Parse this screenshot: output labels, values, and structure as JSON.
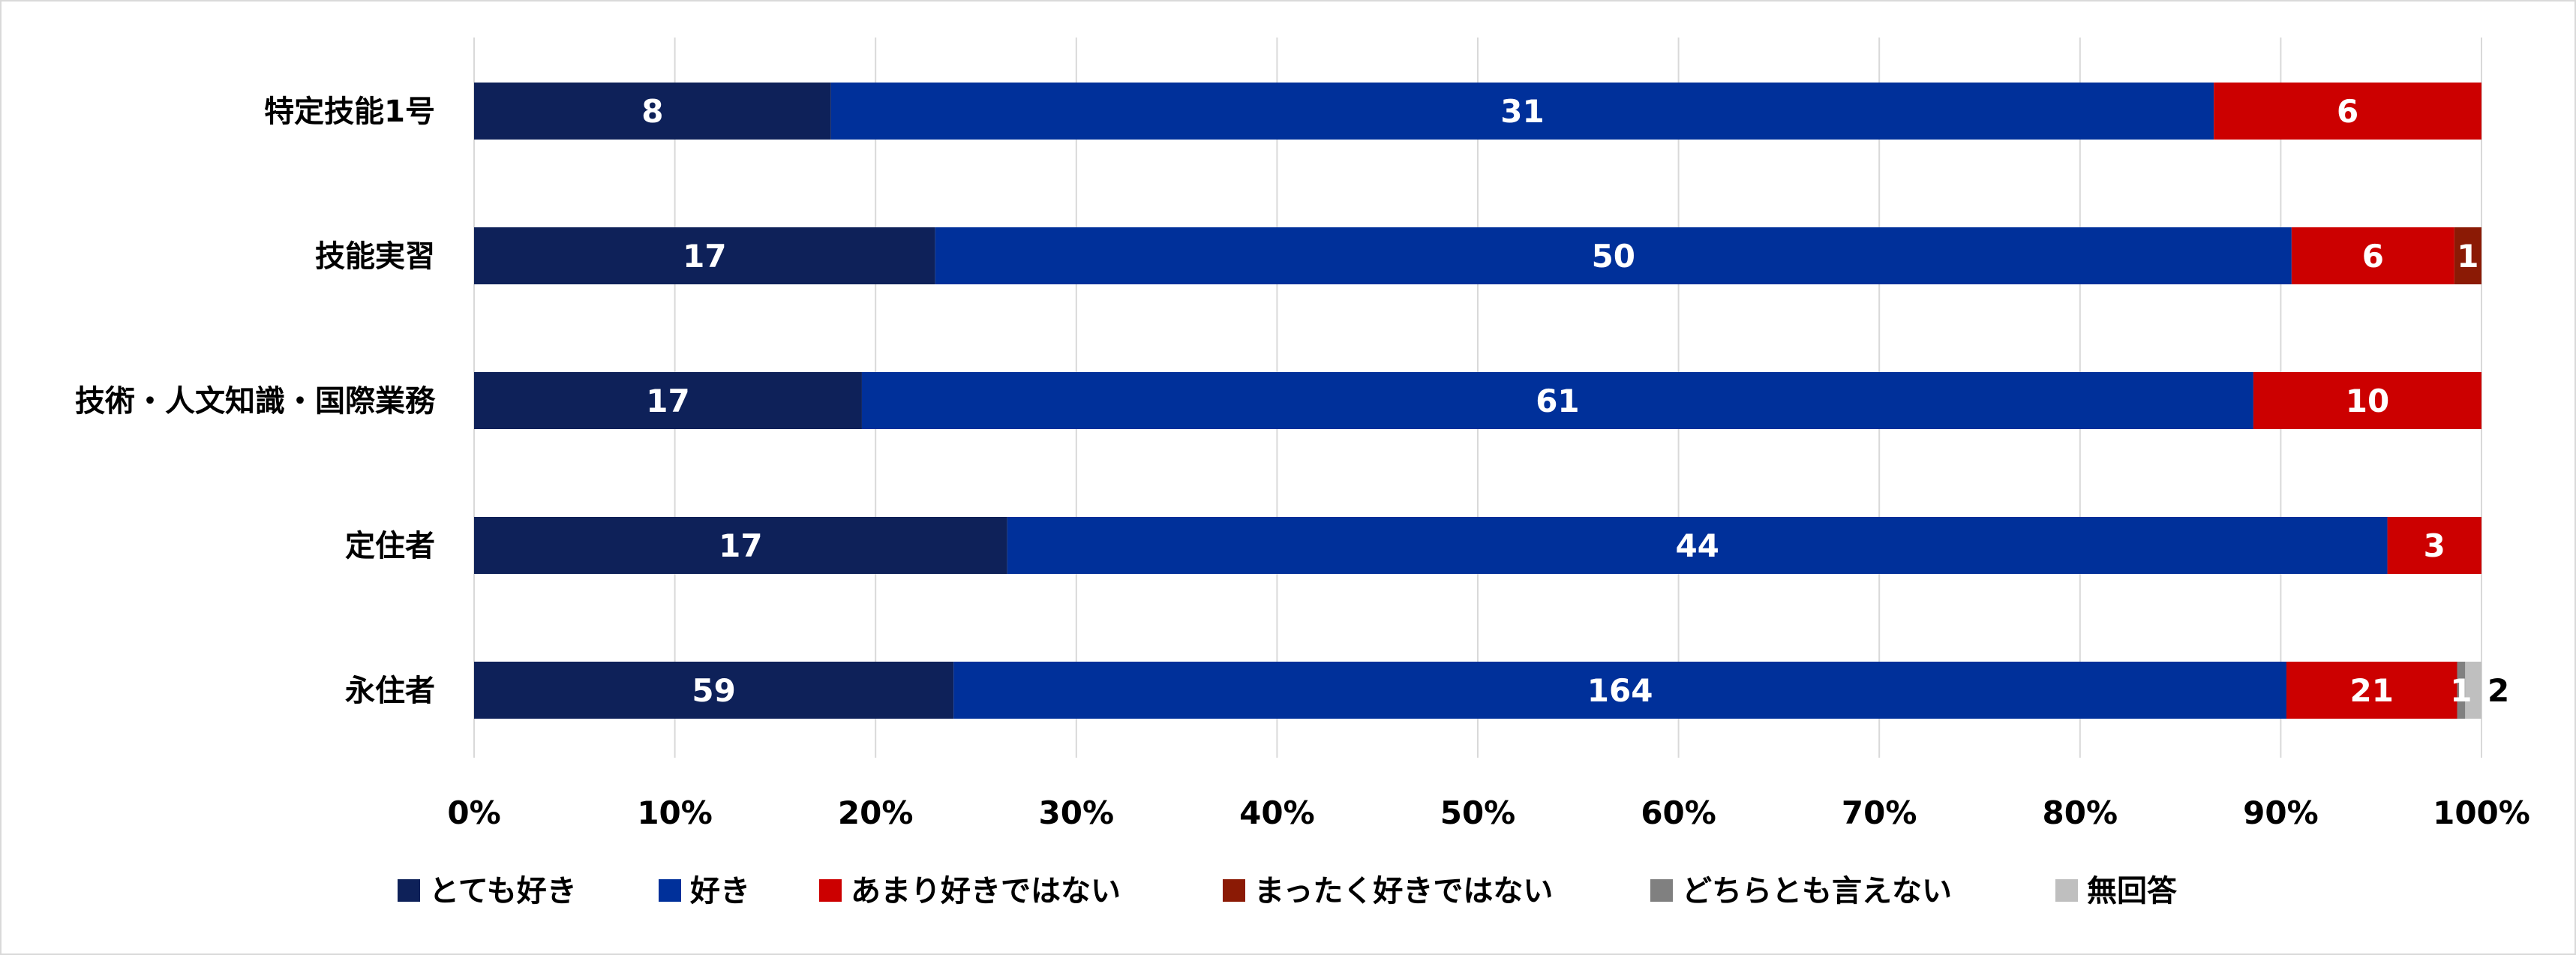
{
  "chart_data": {
    "type": "bar",
    "orientation": "horizontal",
    "stacked": "percent",
    "categories": [
      "特定技能1号",
      "技能実習",
      "技術・人文知識・国際業務",
      "定住者",
      "永住者"
    ],
    "series": [
      {
        "name": "とても好き",
        "color": "#0e2159",
        "values": [
          8,
          17,
          17,
          17,
          59
        ]
      },
      {
        "name": "好き",
        "color": "#00309a",
        "values": [
          31,
          50,
          61,
          44,
          164
        ]
      },
      {
        "name": "あまり好きではない",
        "color": "#cc0000",
        "values": [
          6,
          6,
          10,
          3,
          21
        ]
      },
      {
        "name": "まったく好きではない",
        "color": "#8b1a05",
        "values": [
          0,
          1,
          0,
          0,
          0
        ]
      },
      {
        "name": "どちらとも言えない",
        "color": "#808080",
        "values": [
          0,
          0,
          0,
          0,
          1
        ]
      },
      {
        "name": "無回答",
        "color": "#bfbfbf",
        "values": [
          0,
          0,
          0,
          0,
          2
        ]
      }
    ],
    "xticks": [
      "0%",
      "10%",
      "20%",
      "30%",
      "40%",
      "50%",
      "60%",
      "70%",
      "80%",
      "90%",
      "100%"
    ],
    "xlim": [
      0,
      100
    ],
    "grid": true,
    "legend": "bottom"
  }
}
